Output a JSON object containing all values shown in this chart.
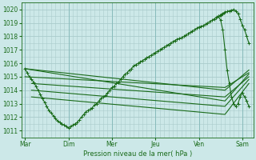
{
  "xlabel": "Pression niveau de la mer( hPa )",
  "bg_color": "#cce8e8",
  "grid_color": "#aacccc",
  "line_color": "#1a6b1a",
  "ylim": [
    1010.5,
    1020.5
  ],
  "yticks": [
    1011,
    1012,
    1013,
    1014,
    1015,
    1016,
    1017,
    1018,
    1019,
    1020
  ],
  "day_labels": [
    "Mar",
    "Dim",
    "Mer",
    "Jeu",
    "Ven",
    "Sam"
  ],
  "day_positions": [
    0,
    1,
    2,
    3,
    4,
    5
  ],
  "xlim": [
    -0.08,
    5.25
  ],
  "main_x": [
    0.0,
    0.05,
    0.1,
    0.15,
    0.2,
    0.25,
    0.3,
    0.35,
    0.4,
    0.45,
    0.5,
    0.55,
    0.6,
    0.65,
    0.7,
    0.75,
    0.8,
    0.85,
    0.9,
    0.95,
    1.0,
    1.05,
    1.1,
    1.15,
    1.2,
    1.25,
    1.3,
    1.35,
    1.4,
    1.45,
    1.5,
    1.55,
    1.6,
    1.65,
    1.7,
    1.75,
    1.8,
    1.85,
    1.9,
    1.95,
    2.0,
    2.05,
    2.1,
    2.15,
    2.2,
    2.25,
    2.3,
    2.35,
    2.4,
    2.45,
    2.5,
    2.55,
    2.6,
    2.65,
    2.7,
    2.75,
    2.8,
    2.85,
    2.9,
    2.95,
    3.0,
    3.05,
    3.1,
    3.15,
    3.2,
    3.25,
    3.3,
    3.35,
    3.4,
    3.45,
    3.5,
    3.55,
    3.6,
    3.65,
    3.7,
    3.75,
    3.8,
    3.85,
    3.9,
    3.95,
    4.0,
    4.05,
    4.1,
    4.15,
    4.2,
    4.25,
    4.3,
    4.35,
    4.4,
    4.42,
    4.45,
    4.48,
    4.5,
    4.52,
    4.55,
    4.58,
    4.6,
    4.65,
    4.7,
    4.75,
    4.8,
    4.85,
    4.9,
    4.95,
    5.0,
    5.05,
    5.1,
    5.15
  ],
  "main_y": [
    1015.6,
    1015.3,
    1015.0,
    1014.8,
    1014.6,
    1014.3,
    1014.0,
    1013.7,
    1013.4,
    1013.1,
    1012.8,
    1012.5,
    1012.3,
    1012.1,
    1011.9,
    1011.7,
    1011.6,
    1011.5,
    1011.4,
    1011.3,
    1011.2,
    1011.3,
    1011.4,
    1011.5,
    1011.6,
    1011.8,
    1012.0,
    1012.2,
    1012.4,
    1012.5,
    1012.6,
    1012.7,
    1012.9,
    1013.0,
    1013.2,
    1013.4,
    1013.5,
    1013.6,
    1013.8,
    1014.0,
    1014.2,
    1014.3,
    1014.5,
    1014.6,
    1014.8,
    1015.0,
    1015.2,
    1015.3,
    1015.5,
    1015.6,
    1015.8,
    1015.9,
    1016.0,
    1016.1,
    1016.2,
    1016.3,
    1016.4,
    1016.5,
    1016.6,
    1016.7,
    1016.8,
    1016.9,
    1017.0,
    1017.1,
    1017.2,
    1017.3,
    1017.4,
    1017.5,
    1017.6,
    1017.7,
    1017.8,
    1017.85,
    1017.9,
    1018.0,
    1018.1,
    1018.2,
    1018.3,
    1018.4,
    1018.5,
    1018.6,
    1018.7,
    1018.75,
    1018.8,
    1018.9,
    1019.0,
    1019.1,
    1019.2,
    1019.3,
    1019.4,
    1019.45,
    1019.5,
    1019.55,
    1019.6,
    1019.65,
    1019.7,
    1019.75,
    1019.8,
    1019.85,
    1019.9,
    1019.95,
    1020.0,
    1019.9,
    1019.7,
    1019.3,
    1018.8,
    1018.5,
    1018.0,
    1017.5
  ],
  "forecast_lines": [
    {
      "x": [
        0.0,
        4.6,
        5.15
      ],
      "y": [
        1015.6,
        1013.2,
        1015.2
      ]
    },
    {
      "x": [
        0.0,
        4.6,
        5.15
      ],
      "y": [
        1015.6,
        1014.0,
        1015.5
      ]
    },
    {
      "x": [
        0.0,
        4.6,
        5.15
      ],
      "y": [
        1015.0,
        1014.2,
        1015.3
      ]
    },
    {
      "x": [
        0.15,
        4.6,
        5.15
      ],
      "y": [
        1014.5,
        1013.5,
        1015.0
      ]
    },
    {
      "x": [
        0.15,
        4.6,
        5.15
      ],
      "y": [
        1014.0,
        1012.8,
        1014.8
      ]
    },
    {
      "x": [
        0.15,
        4.6,
        5.15
      ],
      "y": [
        1013.5,
        1012.2,
        1014.5
      ]
    }
  ],
  "drop_x": [
    4.45,
    4.5,
    4.55,
    4.6,
    4.65,
    4.7,
    4.75,
    4.8,
    4.85,
    4.9,
    4.95,
    5.0,
    5.05,
    5.1,
    5.15
  ],
  "drop_y": [
    1019.5,
    1019.2,
    1018.5,
    1017.0,
    1015.5,
    1014.5,
    1013.5,
    1013.0,
    1012.8,
    1013.0,
    1013.5,
    1013.8,
    1013.5,
    1013.2,
    1012.8
  ]
}
